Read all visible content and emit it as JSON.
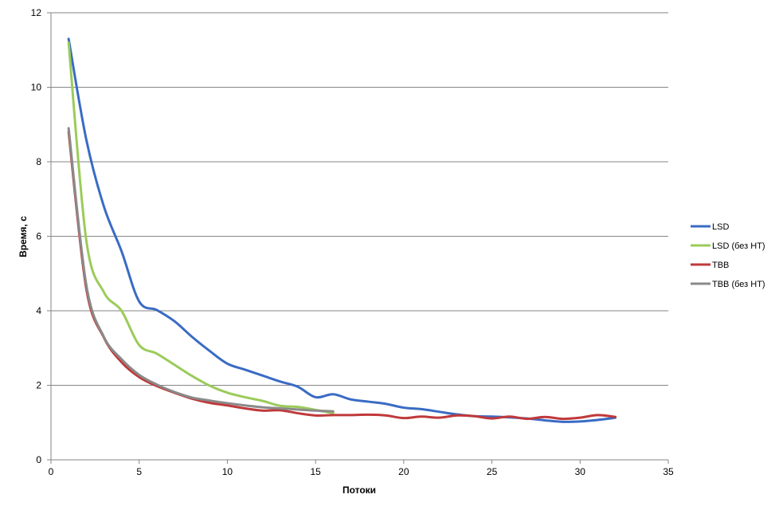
{
  "chart_data": {
    "type": "line",
    "title": "",
    "xlabel": "Потоки",
    "ylabel": "Время, с",
    "xlim": [
      0,
      35
    ],
    "ylim": [
      0,
      12
    ],
    "x_ticks": [
      0,
      5,
      10,
      15,
      20,
      25,
      30,
      35
    ],
    "y_ticks": [
      0,
      2,
      4,
      6,
      8,
      10,
      12
    ],
    "grid": "horizontal",
    "legend_position": "right",
    "series": [
      {
        "name": "LSD",
        "color": "#3A6BC4",
        "x": [
          1,
          2,
          3,
          4,
          5,
          6,
          7,
          8,
          9,
          10,
          11,
          12,
          13,
          14,
          15,
          16,
          17,
          18,
          19,
          20,
          21,
          22,
          23,
          24,
          25,
          26,
          27,
          28,
          29,
          30,
          31,
          32
        ],
        "y": [
          11.3,
          8.6,
          6.8,
          5.6,
          4.25,
          4.02,
          3.72,
          3.3,
          2.92,
          2.58,
          2.42,
          2.26,
          2.1,
          1.96,
          1.68,
          1.76,
          1.62,
          1.56,
          1.5,
          1.4,
          1.36,
          1.29,
          1.22,
          1.17,
          1.16,
          1.14,
          1.11,
          1.06,
          1.02,
          1.03,
          1.07,
          1.13
        ]
      },
      {
        "name": "LSD (без HT)",
        "color": "#9BCB5A",
        "x": [
          1,
          2,
          3,
          4,
          5,
          6,
          7,
          8,
          9,
          10,
          11,
          12,
          13,
          14,
          15,
          16
        ],
        "y": [
          11.2,
          5.9,
          4.5,
          4.0,
          3.08,
          2.85,
          2.55,
          2.25,
          1.99,
          1.8,
          1.68,
          1.58,
          1.45,
          1.42,
          1.34,
          1.25
        ]
      },
      {
        "name": "TBB",
        "color": "#C0393A",
        "x": [
          1,
          2,
          3,
          4,
          5,
          6,
          7,
          8,
          9,
          10,
          11,
          12,
          13,
          14,
          15,
          16,
          17,
          18,
          19,
          20,
          21,
          22,
          23,
          24,
          25,
          26,
          27,
          28,
          29,
          30,
          31,
          32
        ],
        "y": [
          8.8,
          4.6,
          3.28,
          2.62,
          2.22,
          1.98,
          1.8,
          1.64,
          1.53,
          1.46,
          1.38,
          1.32,
          1.33,
          1.25,
          1.19,
          1.2,
          1.2,
          1.21,
          1.19,
          1.12,
          1.16,
          1.13,
          1.19,
          1.17,
          1.11,
          1.16,
          1.1,
          1.15,
          1.1,
          1.13,
          1.2,
          1.15
        ]
      },
      {
        "name": "TBB (без HT)",
        "color": "#8A8A8A",
        "x": [
          1,
          2,
          3,
          4,
          5,
          6,
          7,
          8,
          9,
          10,
          11,
          12,
          13,
          14,
          15,
          16
        ],
        "y": [
          8.9,
          4.7,
          3.3,
          2.7,
          2.28,
          2.02,
          1.82,
          1.67,
          1.59,
          1.52,
          1.46,
          1.41,
          1.38,
          1.35,
          1.32,
          1.3
        ]
      }
    ]
  }
}
